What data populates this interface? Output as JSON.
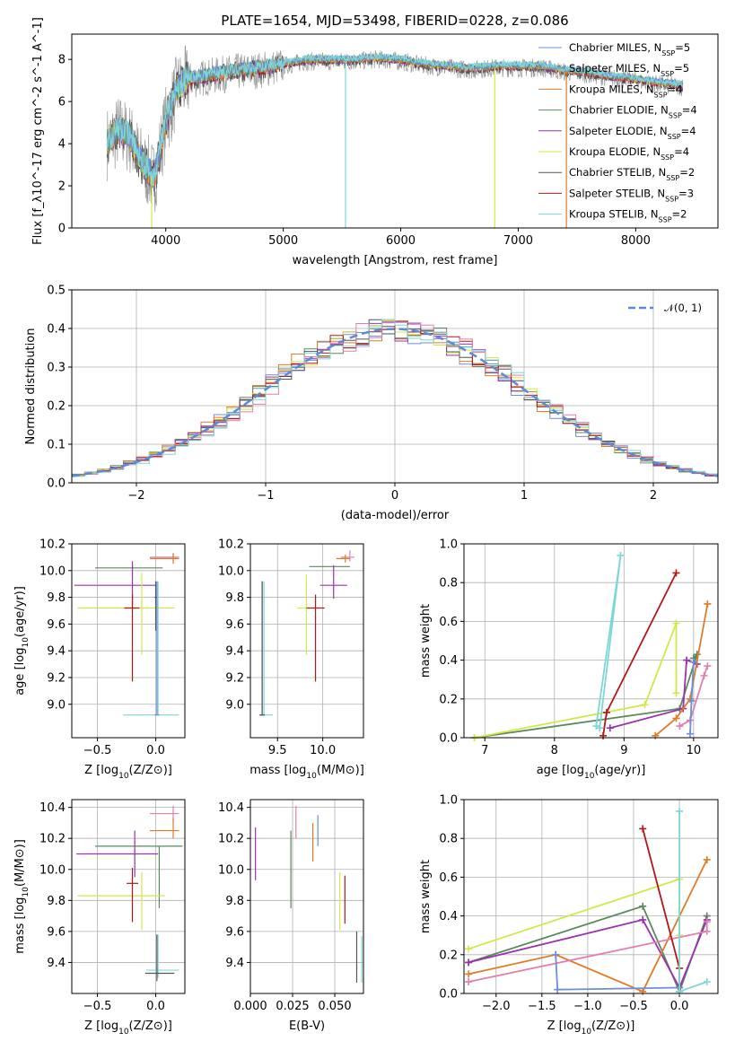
{
  "figure": {
    "title": "PLATE=1654, MJD=53498, FIBERID=0228, z=0.086"
  },
  "colors": {
    "chabrier_miles": "#6b8fd9",
    "salpeter_miles": "#9a9a9a",
    "kroupa_miles": "#e07b28",
    "chabrier_elodie": "#5c8a5c",
    "salpeter_elodie": "#9b30b0",
    "kroupa_elodie": "#d2e84a",
    "chabrier_stelib": "#555555",
    "salpeter_stelib": "#b01818",
    "kroupa_stelib": "#7fd6d6",
    "pink": "#e07fb0",
    "normal": "#5b8bd6"
  },
  "chart_data": [
    {
      "id": "spectrum",
      "type": "line",
      "xlabel": "wavelength [Angstrom, rest frame]",
      "ylabel": "Flux [f_λ10^-17 erg cm^-2 s^-1 A^-1]",
      "xlim": [
        3200,
        8700
      ],
      "ylim": [
        0,
        9.2
      ],
      "xticks": [
        4000,
        5000,
        6000,
        7000,
        8000
      ],
      "yticks": [
        0,
        2,
        4,
        6,
        8
      ],
      "legend_position": "upper right",
      "legend": [
        {
          "label": "Chabrier MILES, N",
          "sub": "SSP",
          "suffix": "=5",
          "color": "#6b8fd9"
        },
        {
          "label": "Salpeter MILES, N",
          "sub": "SSP",
          "suffix": "=5",
          "color": "#9a9a9a"
        },
        {
          "label": "Kroupa MILES, N",
          "sub": "SSP",
          "suffix": "=4",
          "color": "#e07b28"
        },
        {
          "label": "Chabrier ELODIE, N",
          "sub": "SSP",
          "suffix": "=4",
          "color": "#5c8a5c"
        },
        {
          "label": "Salpeter ELODIE, N",
          "sub": "SSP",
          "suffix": "=4",
          "color": "#9b30b0"
        },
        {
          "label": "Kroupa ELODIE, N",
          "sub": "SSP",
          "suffix": "=4",
          "color": "#d2e84a"
        },
        {
          "label": "Chabrier STELIB, N",
          "sub": "SSP",
          "suffix": "=2",
          "color": "#555555"
        },
        {
          "label": "Salpeter STELIB, N",
          "sub": "SSP",
          "suffix": "=3",
          "color": "#b01818"
        },
        {
          "label": "Kroupa STELIB, N",
          "sub": "SSP",
          "suffix": "=2",
          "color": "#7fd6d6"
        }
      ],
      "continuum_x": [
        3500,
        3600,
        3700,
        3800,
        3900,
        4000,
        4100,
        4200,
        4400,
        4600,
        4800,
        5000,
        5200,
        5400,
        5600,
        5800,
        6000,
        6200,
        6400,
        6600,
        6800,
        7000,
        7200,
        7400,
        7600,
        7800,
        8000,
        8200,
        8400
      ],
      "continuum_y": [
        4.0,
        4.6,
        4.2,
        3.0,
        2.3,
        5.0,
        6.6,
        7.0,
        7.2,
        7.4,
        7.5,
        7.7,
        7.9,
        7.9,
        7.9,
        8.0,
        7.9,
        7.7,
        7.6,
        7.5,
        7.6,
        7.6,
        7.6,
        7.4,
        7.3,
        7.1,
        7.0,
        6.8,
        6.7
      ],
      "x_end": 8400,
      "spikes": [
        {
          "x": 3880,
          "color": "#d2e84a"
        },
        {
          "x": 5530,
          "color": "#7fd6d6"
        },
        {
          "x": 6800,
          "color": "#d2e84a"
        },
        {
          "x": 7410,
          "color": "#e07b28"
        }
      ]
    },
    {
      "id": "residuals",
      "type": "histogram",
      "xlabel": "(data-model)/error",
      "ylabel": "Normed distribution",
      "xlim": [
        -2.5,
        2.5
      ],
      "ylim": [
        0,
        0.5
      ],
      "xticks": [
        -2,
        -1,
        0,
        1,
        2
      ],
      "yticks": [
        0.0,
        0.1,
        0.2,
        0.3,
        0.4,
        0.5
      ],
      "legend": [
        {
          "label": "𝒩(0, 1)",
          "color": "#5b8bd6",
          "style": "dashed"
        }
      ],
      "legend_position": "upper right",
      "bin_width": 0.1,
      "x_start": -2.5,
      "base_profile_sigma": 1.0
    },
    {
      "id": "age_vs_Z",
      "type": "scatter-errorbar",
      "xlabel": "Z [log10(Z/Z⊙)]",
      "ylabel": "age  [log10(age/yr)]",
      "xlim": [
        -0.72,
        0.25
      ],
      "ylim": [
        8.75,
        10.2
      ],
      "xticks": [
        -0.5,
        0.0
      ],
      "yticks": [
        9.0,
        9.2,
        9.4,
        9.6,
        9.8,
        10.0,
        10.2
      ],
      "points": [
        {
          "x": 0.03,
          "y": 10.02,
          "xerr": [
            0.55,
            0.03
          ],
          "yerr": [
            0.0,
            0.0
          ],
          "color": "#5c8a5c"
        },
        {
          "x": -0.2,
          "y": 9.89,
          "xerr": [
            0.5,
            0.2
          ],
          "yerr": [
            0.15,
            0.18
          ],
          "color": "#9b30b0"
        },
        {
          "x": 0.15,
          "y": 10.1,
          "xerr": [
            0.2,
            0.05
          ],
          "yerr": [
            0.03,
            0.03
          ],
          "color": "#e07fb0"
        },
        {
          "x": 0.15,
          "y": 10.09,
          "xerr": [
            0.2,
            0.05
          ],
          "yerr": [
            0.04,
            0.04
          ],
          "color": "#e07b28"
        },
        {
          "x": -0.12,
          "y": 9.72,
          "xerr": [
            0.55,
            0.28
          ],
          "yerr": [
            0.35,
            0.26
          ],
          "color": "#d2e84a"
        },
        {
          "x": -0.2,
          "y": 9.72,
          "xerr": [
            0.07,
            0.06
          ],
          "yerr": [
            0.55,
            0.1
          ],
          "color": "#b01818"
        },
        {
          "x": 0.02,
          "y": 8.92,
          "xerr": [
            0.3,
            0.18
          ],
          "yerr": [
            0.0,
            1.0
          ],
          "color": "#7fd6d6"
        },
        {
          "x": 0.01,
          "y": 8.92,
          "xerr": [
            0.02,
            0.02
          ],
          "yerr": [
            0.0,
            1.0
          ],
          "color": "#6b8fd9"
        },
        {
          "x": 0.0,
          "y": 9.8,
          "xerr": [
            0.01,
            0.01
          ],
          "yerr": [
            0.25,
            0.12
          ],
          "color": "#555555"
        }
      ]
    },
    {
      "id": "age_vs_mass",
      "type": "scatter-errorbar",
      "xlabel": "mass [log10(M/M⊙)]",
      "ylabel": "",
      "xlim": [
        9.2,
        10.45
      ],
      "ylim": [
        8.75,
        10.2
      ],
      "xticks": [
        9.5,
        10.0
      ],
      "yticks": [
        9.0,
        9.2,
        9.4,
        9.6,
        9.8,
        10.0,
        10.2
      ],
      "points": [
        {
          "x": 10.1,
          "y": 10.03,
          "xerr": [
            0.25,
            0.2
          ],
          "yerr": [
            0.0,
            0.0
          ],
          "color": "#5c8a5c"
        },
        {
          "x": 10.12,
          "y": 9.89,
          "xerr": [
            0.15,
            0.15
          ],
          "yerr": [
            0.1,
            0.15
          ],
          "color": "#9b30b0"
        },
        {
          "x": 10.3,
          "y": 10.1,
          "xerr": [
            0.1,
            0.05
          ],
          "yerr": [
            0.03,
            0.05
          ],
          "color": "#e07fb0"
        },
        {
          "x": 10.25,
          "y": 10.09,
          "xerr": [
            0.1,
            0.05
          ],
          "yerr": [
            0.03,
            0.03
          ],
          "color": "#e07b28"
        },
        {
          "x": 9.82,
          "y": 9.72,
          "xerr": [
            0.1,
            0.05
          ],
          "yerr": [
            0.35,
            0.25
          ],
          "color": "#d2e84a"
        },
        {
          "x": 9.92,
          "y": 9.72,
          "xerr": [
            0.1,
            0.1
          ],
          "yerr": [
            0.55,
            0.1
          ],
          "color": "#b01818"
        },
        {
          "x": 9.35,
          "y": 8.92,
          "xerr": [
            0.05,
            0.1
          ],
          "yerr": [
            0.0,
            1.0
          ],
          "color": "#7fd6d6"
        },
        {
          "x": 9.33,
          "y": 8.92,
          "xerr": [
            0.02,
            0.02
          ],
          "yerr": [
            0.0,
            1.0
          ],
          "color": "#6b8fd9"
        },
        {
          "x": 9.33,
          "y": 8.92,
          "xerr": [
            0.03,
            0.03
          ],
          "yerr": [
            0.0,
            1.0
          ],
          "color": "#555555"
        }
      ]
    },
    {
      "id": "weight_vs_age",
      "type": "line",
      "xlabel": "age  [log10(age/yr)]",
      "ylabel": "mass weight",
      "xlim": [
        6.7,
        10.35
      ],
      "ylim": [
        0,
        1.0
      ],
      "xticks": [
        7,
        8,
        9,
        10
      ],
      "yticks": [
        0.0,
        0.2,
        0.4,
        0.6,
        0.8,
        1.0
      ],
      "series": [
        {
          "color": "#5c8a5c",
          "x": [
            6.85,
            9.8,
            10.05,
            10.0
          ],
          "y": [
            0.0,
            0.15,
            0.43,
            0.41
          ]
        },
        {
          "color": "#d2e84a",
          "x": [
            6.85,
            9.3,
            9.75,
            9.75
          ],
          "y": [
            0.0,
            0.17,
            0.59,
            0.23
          ]
        },
        {
          "color": "#9b30b0",
          "x": [
            8.8,
            9.85,
            9.9,
            10.05
          ],
          "y": [
            0.05,
            0.15,
            0.4,
            0.38
          ]
        },
        {
          "color": "#b01818",
          "x": [
            8.7,
            8.75,
            9.75
          ],
          "y": [
            0.01,
            0.13,
            0.85
          ]
        },
        {
          "color": "#e07b28",
          "x": [
            9.45,
            9.75,
            9.95,
            10.2
          ],
          "y": [
            0.01,
            0.1,
            0.2,
            0.69
          ]
        },
        {
          "color": "#e07fb0",
          "x": [
            9.8,
            9.95,
            10.15,
            10.2
          ],
          "y": [
            0.06,
            0.09,
            0.32,
            0.37
          ]
        },
        {
          "color": "#6b8fd9",
          "x": [
            9.95,
            9.97,
            10.0
          ],
          "y": [
            0.02,
            0.19,
            0.39
          ]
        },
        {
          "color": "#7fd6d6",
          "x": [
            8.6,
            8.95,
            8.65
          ],
          "y": [
            0.06,
            0.94,
            0.05
          ]
        }
      ]
    },
    {
      "id": "mass_vs_Z",
      "type": "scatter-errorbar",
      "xlabel": "Z [log10(Z/Z⊙)]",
      "ylabel": "mass [log10(M/M⊙)]",
      "xlim": [
        -0.72,
        0.25
      ],
      "ylim": [
        9.2,
        10.45
      ],
      "xticks": [
        -0.5,
        0.0
      ],
      "yticks": [
        9.4,
        9.6,
        9.8,
        10.0,
        10.2,
        10.4
      ],
      "points": [
        {
          "x": 0.03,
          "y": 10.15,
          "xerr": [
            0.55,
            0.2
          ],
          "yerr": [
            0.4,
            0.0
          ],
          "color": "#5c8a5c"
        },
        {
          "x": -0.18,
          "y": 10.1,
          "xerr": [
            0.5,
            0.2
          ],
          "yerr": [
            0.15,
            0.15
          ],
          "color": "#9b30b0"
        },
        {
          "x": 0.15,
          "y": 10.36,
          "xerr": [
            0.2,
            0.05
          ],
          "yerr": [
            0.05,
            0.05
          ],
          "color": "#e07fb0"
        },
        {
          "x": 0.15,
          "y": 10.25,
          "xerr": [
            0.2,
            0.05
          ],
          "yerr": [
            0.05,
            0.08
          ],
          "color": "#e07b28"
        },
        {
          "x": -0.12,
          "y": 9.83,
          "xerr": [
            0.55,
            0.2
          ],
          "yerr": [
            0.22,
            0.15
          ],
          "color": "#d2e84a"
        },
        {
          "x": -0.2,
          "y": 9.91,
          "xerr": [
            0.05,
            0.05
          ],
          "yerr": [
            0.25,
            0.1
          ],
          "color": "#b01818"
        },
        {
          "x": 0.02,
          "y": 9.35,
          "xerr": [
            0.1,
            0.18
          ],
          "yerr": [
            0.05,
            0.23
          ],
          "color": "#7fd6d6"
        },
        {
          "x": 0.01,
          "y": 9.33,
          "xerr": [
            0.1,
            0.15
          ],
          "yerr": [
            0.05,
            0.25
          ],
          "color": "#555555"
        }
      ]
    },
    {
      "id": "mass_vs_ebv",
      "type": "scatter-errorbar",
      "xlabel": "E(B-V)",
      "ylabel": "",
      "xlim": [
        0.0,
        0.067
      ],
      "ylim": [
        9.2,
        10.45
      ],
      "xticks": [
        0.0,
        0.025,
        0.05
      ],
      "xticklabels": [
        "0.000",
        "0.025",
        "0.050"
      ],
      "yticks": [
        9.4,
        9.6,
        9.8,
        10.0,
        10.2,
        10.4
      ],
      "points": [
        {
          "x": 0.003,
          "y": 10.1,
          "yerr": [
            0.17,
            0.17
          ],
          "color": "#9b30b0"
        },
        {
          "x": 0.024,
          "y": 10.15,
          "yerr": [
            0.4,
            0.1
          ],
          "color": "#5c8a5c"
        },
        {
          "x": 0.027,
          "y": 10.3,
          "yerr": [
            0.1,
            0.11
          ],
          "color": "#e07fb0"
        },
        {
          "x": 0.037,
          "y": 10.18,
          "yerr": [
            0.13,
            0.12
          ],
          "color": "#e07b28"
        },
        {
          "x": 0.04,
          "y": 10.25,
          "yerr": [
            0.1,
            0.1
          ],
          "color": "#6b8fd9"
        },
        {
          "x": 0.053,
          "y": 9.83,
          "yerr": [
            0.22,
            0.15
          ],
          "color": "#d2e84a"
        },
        {
          "x": 0.056,
          "y": 9.86,
          "yerr": [
            0.21,
            0.1
          ],
          "color": "#b01818"
        },
        {
          "x": 0.063,
          "y": 9.35,
          "yerr": [
            0.08,
            0.25
          ],
          "color": "#555555"
        },
        {
          "x": 0.066,
          "y": 9.37,
          "yerr": [
            0.1,
            0.2
          ],
          "color": "#7fd6d6"
        }
      ]
    },
    {
      "id": "weight_vs_Z",
      "type": "line",
      "xlabel": "Z [log10(Z/Z⊙)]",
      "ylabel": "mass weight",
      "xlim": [
        -2.35,
        0.42
      ],
      "ylim": [
        0,
        1.0
      ],
      "xticks": [
        -2.0,
        -1.5,
        -1.0,
        -0.5,
        0.0
      ],
      "yticks": [
        0.0,
        0.2,
        0.4,
        0.6,
        0.8,
        1.0
      ],
      "series": [
        {
          "color": "#5c8a5c",
          "x": [
            -2.3,
            -0.4,
            0.0,
            0.3
          ],
          "y": [
            0.16,
            0.45,
            0.01,
            0.4
          ]
        },
        {
          "color": "#9b30b0",
          "x": [
            -2.3,
            -0.4,
            0.0,
            0.3
          ],
          "y": [
            0.16,
            0.38,
            0.03,
            0.38
          ]
        },
        {
          "color": "#d2e84a",
          "x": [
            -2.3,
            0.0,
            0.0
          ],
          "y": [
            0.23,
            0.59,
            0.3
          ]
        },
        {
          "color": "#e07b28",
          "x": [
            -2.3,
            -1.35,
            -0.4,
            0.3
          ],
          "y": [
            0.1,
            0.2,
            0.01,
            0.69
          ]
        },
        {
          "color": "#e07fb0",
          "x": [
            -2.3,
            0.3,
            0.3
          ],
          "y": [
            0.06,
            0.32,
            0.37
          ]
        },
        {
          "color": "#6b8fd9",
          "x": [
            -1.35,
            -1.33,
            0.0
          ],
          "y": [
            0.2,
            0.02,
            0.03
          ]
        },
        {
          "color": "#b01818",
          "x": [
            -0.4,
            0.0,
            0.0
          ],
          "y": [
            0.85,
            0.13,
            0.01
          ]
        },
        {
          "color": "#7fd6d6",
          "x": [
            0.0,
            0.0,
            0.3
          ],
          "y": [
            0.94,
            0.01,
            0.06
          ]
        }
      ]
    }
  ]
}
